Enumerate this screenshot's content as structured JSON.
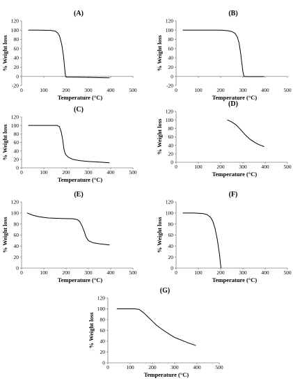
{
  "chart_data": [
    {
      "type": "line",
      "title": "(A)",
      "xlabel": "Temperature (°C)",
      "ylabel": "% Weight loss",
      "xlim": [
        0,
        500
      ],
      "ylim": [
        -20,
        120
      ],
      "xticks": [
        "0",
        "100",
        "200",
        "300",
        "400",
        "500"
      ],
      "yticks": [
        "-20",
        "0",
        "20",
        "40",
        "60",
        "80",
        "100",
        "120"
      ],
      "x": [
        30,
        80,
        130,
        150,
        160,
        170,
        180,
        188,
        193,
        196,
        198,
        200,
        205,
        250,
        300,
        350,
        395
      ],
      "y": [
        100,
        100,
        99.5,
        98,
        95,
        88,
        70,
        45,
        20,
        5,
        0,
        -1,
        -1.5,
        -1.8,
        -2.2,
        -2.6,
        -3
      ]
    },
    {
      "type": "line",
      "title": "(B)",
      "xlabel": "Temperature (°C)",
      "ylabel": "% Weight loss",
      "xlim": [
        0,
        500
      ],
      "ylim": [
        -20,
        120
      ],
      "xticks": [
        "0",
        "100",
        "200",
        "300",
        "400",
        "500"
      ],
      "yticks": [
        "-20",
        "0",
        "20",
        "40",
        "60",
        "80",
        "100",
        "120"
      ],
      "x": [
        30,
        100,
        200,
        230,
        250,
        265,
        275,
        283,
        290,
        295,
        300,
        305,
        320,
        350,
        395
      ],
      "y": [
        100,
        100,
        100,
        99,
        97,
        93,
        85,
        72,
        50,
        30,
        10,
        0,
        -0.5,
        -0.5,
        -0.5
      ]
    },
    {
      "type": "line",
      "title": "(C)",
      "xlabel": "Temperature (°C)",
      "ylabel": "% Weight loss",
      "xlim": [
        0,
        500
      ],
      "ylim": [
        0,
        120
      ],
      "xticks": [
        "0",
        "100",
        "200",
        "300",
        "400",
        "500"
      ],
      "yticks": [
        "0",
        "20",
        "40",
        "60",
        "80",
        "100",
        "120"
      ],
      "x": [
        30,
        100,
        160,
        170,
        178,
        185,
        190,
        195,
        200,
        210,
        230,
        260,
        300,
        350,
        395
      ],
      "y": [
        100,
        100,
        100,
        97,
        85,
        65,
        45,
        35,
        30,
        25,
        20,
        17,
        15,
        13.5,
        12
      ]
    },
    {
      "type": "line",
      "title": "(D)",
      "xlabel": "Temperature (°C)",
      "ylabel": "% Weight loss",
      "xlim": [
        0,
        500
      ],
      "ylim": [
        0,
        120
      ],
      "xticks": [
        "0",
        "100",
        "200",
        "300",
        "400",
        "500"
      ],
      "yticks": [
        "0",
        "20",
        "40",
        "60",
        "80",
        "100",
        "120"
      ],
      "x": [
        230,
        250,
        270,
        290,
        310,
        330,
        350,
        370,
        395
      ],
      "y": [
        100,
        95,
        88,
        77,
        65,
        55,
        48,
        42,
        37
      ]
    },
    {
      "type": "line",
      "title": "(E)",
      "xlabel": "Temperature (°C)",
      "ylabel": "% Weight loss",
      "xlim": [
        0,
        500
      ],
      "ylim": [
        0,
        120
      ],
      "xticks": [
        "0",
        "100",
        "200",
        "300",
        "400",
        "500"
      ],
      "yticks": [
        "0",
        "20",
        "40",
        "60",
        "80",
        "100",
        "120"
      ],
      "x": [
        25,
        50,
        80,
        120,
        180,
        230,
        250,
        260,
        270,
        280,
        290,
        300,
        320,
        350,
        395
      ],
      "y": [
        100,
        96,
        93,
        91,
        90,
        89.5,
        88,
        85,
        78,
        68,
        56,
        50,
        46,
        44,
        42
      ]
    },
    {
      "type": "line",
      "title": "(F)",
      "xlabel": "Temperature (°C)",
      "ylabel": "% Weight loss",
      "xlim": [
        0,
        500
      ],
      "ylim": [
        0,
        120
      ],
      "xticks": [
        "0",
        "100",
        "200",
        "300",
        "400",
        "500"
      ],
      "yticks": [
        "0",
        "20",
        "40",
        "60",
        "80",
        "100",
        "120"
      ],
      "x": [
        30,
        80,
        120,
        140,
        155,
        165,
        175,
        185,
        195,
        200,
        202
      ],
      "y": [
        100,
        100,
        99,
        97,
        92,
        85,
        72,
        52,
        25,
        5,
        0
      ]
    },
    {
      "type": "line",
      "title": "(G)",
      "xlabel": "Temperature (°C)",
      "ylabel": "% Weight loss",
      "xlim": [
        0,
        500
      ],
      "ylim": [
        0,
        120
      ],
      "xticks": [
        "0",
        "100",
        "200",
        "300",
        "400",
        "500"
      ],
      "yticks": [
        "0",
        "20",
        "40",
        "60",
        "80",
        "100",
        "120"
      ],
      "x": [
        40,
        80,
        120,
        140,
        160,
        180,
        200,
        220,
        250,
        280,
        300,
        330,
        360,
        395
      ],
      "y": [
        100,
        100,
        100,
        99,
        93,
        85,
        77,
        69,
        60,
        52,
        47,
        42,
        37,
        32
      ]
    }
  ]
}
